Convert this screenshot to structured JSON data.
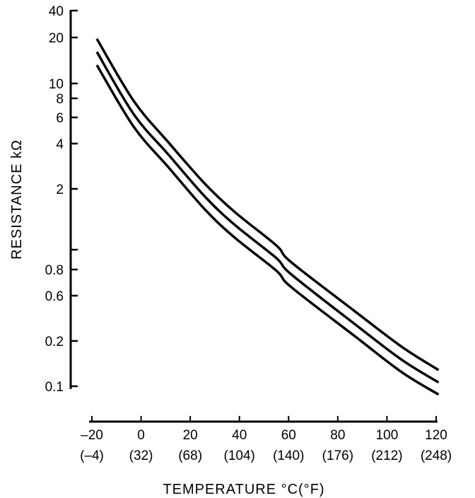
{
  "chart_data": {
    "type": "line",
    "title": "",
    "xlabel": "TEMPERATURE °C(°F)",
    "ylabel": "RESISTANCE kΩ",
    "xlim": [
      -20,
      120
    ],
    "ylim": [
      0.1,
      40
    ],
    "yscale": "log",
    "grid": false,
    "x_ticks": [
      -20,
      0,
      20,
      40,
      60,
      80,
      100,
      120
    ],
    "x_tick_labels": [
      "–20",
      "0",
      "20",
      "40",
      "60",
      "80",
      "100",
      "120"
    ],
    "x_tick_sublabels": [
      "(–4)",
      "(32)",
      "(68)",
      "(104)",
      "(140)",
      "(176)",
      "(212)",
      "(248)"
    ],
    "y_ticks": [
      40,
      20,
      10,
      8,
      6,
      4,
      2,
      1,
      0.8,
      0.6,
      0.2,
      0.1
    ],
    "y_tick_labels": [
      "40",
      "20",
      "10",
      "8",
      "6",
      "4",
      "2",
      "",
      "0.8",
      "0.6",
      "0.2",
      "0.1"
    ],
    "x": [
      -18,
      -3,
      11,
      26,
      38,
      55,
      61,
      87,
      106,
      121
    ],
    "series": [
      {
        "name": "upper",
        "values": [
          19.6,
          7.7,
          4.1,
          2.16,
          1.54,
          1.05,
          0.87,
          0.41,
          0.183,
          0.128
        ]
      },
      {
        "name": "middle",
        "values": [
          16.1,
          6.3,
          3.4,
          1.83,
          1.33,
          0.91,
          0.76,
          0.3,
          0.15,
          0.106
        ]
      },
      {
        "name": "lower",
        "values": [
          13.2,
          5.2,
          2.8,
          1.58,
          1.15,
          0.79,
          0.66,
          0.224,
          0.124,
          0.088
        ]
      }
    ]
  }
}
